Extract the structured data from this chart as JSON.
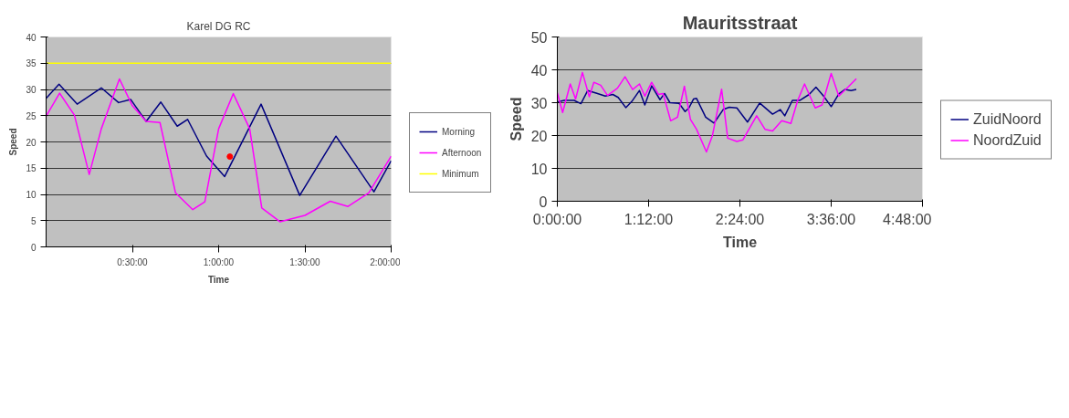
{
  "chart_data": [
    {
      "type": "line",
      "title": "Karel DG RC",
      "xlabel": "Time",
      "ylabel": "Speed",
      "xlim": [
        0,
        2
      ],
      "xticks": [
        {
          "value": 0.5,
          "label": "0:30:00"
        },
        {
          "value": 1,
          "label": "1:00:00"
        },
        {
          "value": 1.5,
          "label": "1:30:00"
        },
        {
          "value": 2,
          "label": "2:00:00"
        }
      ],
      "ylim": [
        0,
        40
      ],
      "yticks": [
        0,
        5,
        10,
        15,
        20,
        25,
        30,
        35,
        40
      ],
      "grid": "y",
      "legend": "right",
      "series": [
        {
          "name": "Morning",
          "color": "#000080",
          "x": [
            0,
            0.075,
            0.18,
            0.32,
            0.42,
            0.49,
            0.58,
            0.665,
            0.76,
            0.82,
            0.93,
            1.035,
            1.246,
            1.47,
            1.68,
            1.9,
            2.0
          ],
          "values": [
            28.3,
            31.0,
            27.2,
            30.3,
            27.5,
            28.1,
            23.9,
            27.6,
            23.0,
            24.3,
            17.3,
            13.4,
            27.2,
            9.8,
            21.1,
            10.5,
            16.4
          ]
        },
        {
          "name": "Afternoon",
          "color": "#ff00ff",
          "x": [
            0,
            0.078,
            0.164,
            0.25,
            0.32,
            0.425,
            0.5,
            0.58,
            0.66,
            0.75,
            0.85,
            0.92,
            1.0,
            1.085,
            1.18,
            1.25,
            1.355,
            1.5,
            1.647,
            1.75,
            1.87,
            2.0
          ],
          "values": [
            24.9,
            29.3,
            25.1,
            13.8,
            22.5,
            32.0,
            26.9,
            23.9,
            23.7,
            10.3,
            7.1,
            8.6,
            22.5,
            29.2,
            22.5,
            7.4,
            4.8,
            6.0,
            8.7,
            7.7,
            10.3,
            17.3
          ]
        },
        {
          "name": "Minimum",
          "color": "#ffff00",
          "x": [
            0,
            2
          ],
          "values": [
            35,
            35
          ]
        },
        {
          "type": "scatter",
          "marker": "circle",
          "color": "#ff0000",
          "x": [
            1.065
          ],
          "values": [
            17.2
          ]
        }
      ]
    },
    {
      "type": "line",
      "title": "Mauritsstraat",
      "xlabel": "Time",
      "ylabel": "Speed",
      "xlim": [
        0,
        4.8
      ],
      "xticks": [
        {
          "value": 0,
          "label": "0:00:00"
        },
        {
          "value": 1.2,
          "label": "1:12:00"
        },
        {
          "value": 2.4,
          "label": "2:24:00"
        },
        {
          "value": 3.6,
          "label": "3:36:00"
        },
        {
          "value": 4.8,
          "label": "4:48:00"
        }
      ],
      "ylim": [
        0,
        50
      ],
      "yticks": [
        0,
        10,
        20,
        30,
        40,
        50
      ],
      "grid": "y",
      "legend": "right",
      "series": [
        {
          "name": "ZuidNoord",
          "color": "#000080",
          "x": [
            0,
            0.09,
            0.22,
            0.31,
            0.4,
            0.51,
            0.63,
            0.73,
            0.8,
            0.9,
            0.98,
            1.08,
            1.15,
            1.24,
            1.35,
            1.41,
            1.48,
            1.6,
            1.68,
            1.73,
            1.79,
            1.83,
            1.95,
            2.06,
            2.18,
            2.26,
            2.36,
            2.5,
            2.66,
            2.83,
            2.93,
            2.99,
            3.09,
            3.19,
            3.31,
            3.4,
            3.5,
            3.6,
            3.7,
            3.78,
            3.86,
            3.93
          ],
          "values": [
            30.2,
            30.7,
            30.7,
            29.7,
            33.7,
            32.9,
            32.0,
            32.5,
            31.6,
            28.5,
            30.4,
            33.7,
            29.3,
            35.1,
            30.9,
            32.8,
            30.0,
            29.8,
            27.3,
            28.4,
            31.1,
            31.3,
            25.6,
            23.8,
            27.9,
            28.6,
            28.4,
            24.1,
            29.9,
            26.5,
            27.9,
            26.0,
            30.7,
            30.7,
            32.5,
            34.7,
            32.0,
            28.8,
            32.7,
            34.0,
            33.7,
            34.0
          ]
        },
        {
          "name": "NoordZuid",
          "color": "#ff00ff",
          "x": [
            0,
            0.07,
            0.17,
            0.24,
            0.33,
            0.42,
            0.48,
            0.57,
            0.66,
            0.79,
            0.89,
            0.99,
            1.08,
            1.15,
            1.24,
            1.33,
            1.39,
            1.49,
            1.58,
            1.67,
            1.75,
            1.83,
            1.96,
            2.04,
            2.16,
            2.24,
            2.36,
            2.44,
            2.62,
            2.73,
            2.83,
            2.95,
            3.07,
            3.16,
            3.25,
            3.39,
            3.48,
            3.6,
            3.7,
            3.82,
            3.93
          ],
          "values": [
            33.0,
            27.0,
            35.7,
            31.1,
            39.2,
            31.8,
            36.2,
            35.3,
            32.2,
            34.4,
            37.9,
            34.0,
            35.7,
            32.0,
            36.2,
            32.5,
            32.8,
            24.5,
            25.6,
            35.0,
            24.9,
            21.9,
            15.0,
            20.1,
            34.1,
            19.2,
            18.2,
            18.7,
            26.0,
            21.9,
            21.4,
            24.5,
            23.7,
            30.7,
            35.7,
            28.4,
            29.3,
            38.9,
            32.0,
            34.7,
            37.3
          ]
        }
      ]
    }
  ]
}
